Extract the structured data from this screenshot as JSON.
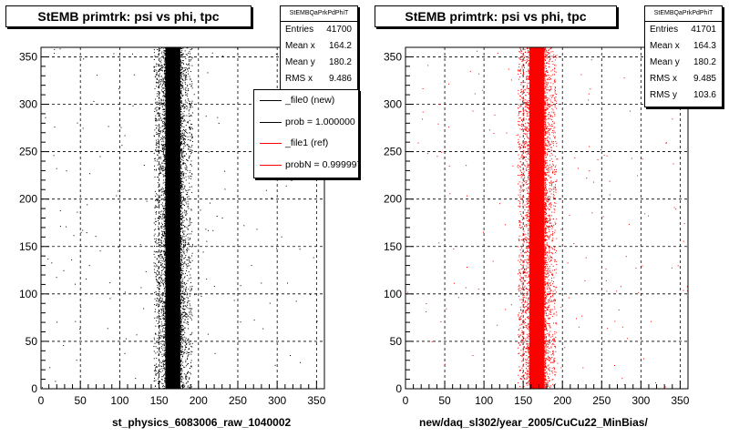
{
  "chart_data": [
    {
      "type": "scatter",
      "title": "StEMB primtrk: psi vs phi, tpc",
      "xlabel": "st_physics_6083006_raw_1040002",
      "ylabel": "",
      "xlim": [
        0,
        360
      ],
      "ylim": [
        0,
        360
      ],
      "x_ticks": [
        0,
        50,
        100,
        150,
        200,
        250,
        300,
        350
      ],
      "y_ticks": [
        0,
        50,
        100,
        150,
        200,
        250,
        300,
        350
      ],
      "grid": true,
      "marker_color": "#000000",
      "band": {
        "x_min": 155,
        "x_max": 180,
        "x_center": 164.2,
        "rms_x": 9.486
      },
      "stats": {
        "header": "StEMBQaPrkPdPhiT",
        "entries": [
          {
            "label": "Entries",
            "value": "41700"
          },
          {
            "label": "Mean x",
            "value": "164.2"
          },
          {
            "label": "Mean y",
            "value": "180.2"
          },
          {
            "label": "RMS x",
            "value": "9.486"
          }
        ]
      },
      "legend": {
        "position": "top-right",
        "entries": [
          {
            "label": "_file0 (new)",
            "color": "#000000"
          },
          {
            "label": "prob = 1.000000",
            "color": "#000000"
          },
          {
            "label": "_file1 (ref)",
            "color": "#ff0000"
          },
          {
            "label": "probN = 0.999997",
            "color": "#ff0000"
          }
        ]
      }
    },
    {
      "type": "scatter",
      "title": "StEMB primtrk: psi vs phi, tpc",
      "xlabel": "new/daq_sl302/year_2005/CuCu22_MinBias/",
      "ylabel": "",
      "xlim": [
        0,
        360
      ],
      "ylim": [
        0,
        360
      ],
      "x_ticks": [
        0,
        50,
        100,
        150,
        200,
        250,
        300,
        350
      ],
      "y_ticks": [
        0,
        50,
        100,
        150,
        200,
        250,
        300,
        350
      ],
      "grid": true,
      "marker_color": "#ff0000",
      "band": {
        "x_min": 155,
        "x_max": 180,
        "x_center": 164.3,
        "rms_x": 9.485
      },
      "stats": {
        "header": "StEMBQaPrkPdPhiT",
        "entries": [
          {
            "label": "Entries",
            "value": "41701"
          },
          {
            "label": "Mean x",
            "value": "164.3"
          },
          {
            "label": "Mean y",
            "value": "180.2"
          },
          {
            "label": "RMS x",
            "value": "9.485"
          },
          {
            "label": "RMS y",
            "value": "103.6"
          }
        ]
      }
    }
  ]
}
